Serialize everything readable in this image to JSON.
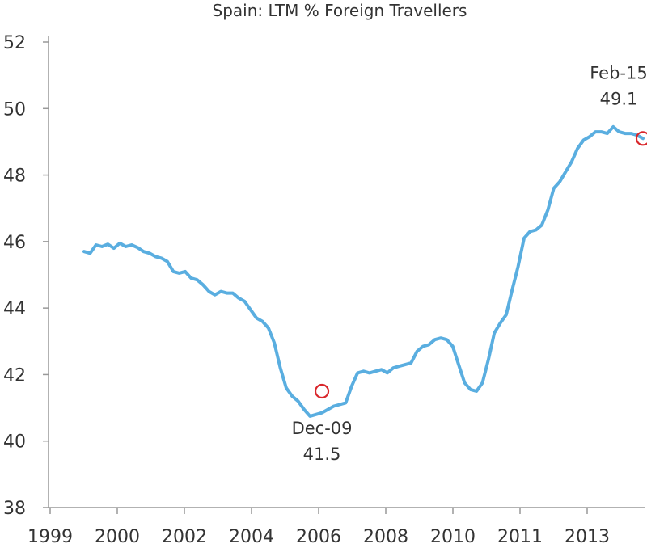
{
  "chart_data": {
    "type": "line",
    "title": "Spain: LTM % Foreign Travellers",
    "xlabel": "",
    "ylabel": "",
    "ylim": [
      38,
      52
    ],
    "y_ticks": [
      38,
      40,
      42,
      44,
      46,
      48,
      50,
      52
    ],
    "x_ticks": [
      "1999",
      "2000",
      "2002",
      "2004",
      "2006",
      "2008",
      "2010",
      "2011",
      "2013"
    ],
    "grid": false,
    "legend": "none",
    "line_color": "#5aaee0",
    "marker_color": "#d9262b",
    "series": [
      {
        "values": [
          45.7,
          45.65,
          45.9,
          45.85,
          45.92,
          45.8,
          45.95,
          45.85,
          45.9,
          45.82,
          45.7,
          45.65,
          45.55,
          45.5,
          45.4,
          45.1,
          45.05,
          45.1,
          44.9,
          44.85,
          44.7,
          44.5,
          44.4,
          44.5,
          44.45,
          44.45,
          44.3,
          44.2,
          43.95,
          43.7,
          43.6,
          43.4,
          42.95,
          42.2,
          41.6,
          41.35,
          41.2,
          40.95,
          40.75,
          40.8,
          40.85,
          40.95,
          41.05,
          41.1,
          41.15,
          41.65,
          42.05,
          42.1,
          42.05,
          42.1,
          42.15,
          42.05,
          42.2,
          42.25,
          42.3,
          42.35,
          42.7,
          42.85,
          42.9,
          43.05,
          43.1,
          43.05,
          42.85,
          42.3,
          41.75,
          41.55,
          41.5,
          41.75,
          42.45,
          43.25,
          43.55,
          43.8,
          44.55,
          45.25,
          46.1,
          46.3,
          46.35,
          46.5,
          46.95,
          47.6,
          47.8,
          48.1,
          48.4,
          48.8,
          49.05,
          49.15,
          49.3,
          49.3,
          49.25,
          49.45,
          49.3,
          49.25,
          49.25,
          49.2,
          49.1
        ]
      }
    ],
    "annotations": [
      {
        "date": "Dec-09",
        "value": "41.5",
        "y": 41.5
      },
      {
        "date": "Feb-15",
        "value": "49.1",
        "y": 49.1
      }
    ]
  }
}
